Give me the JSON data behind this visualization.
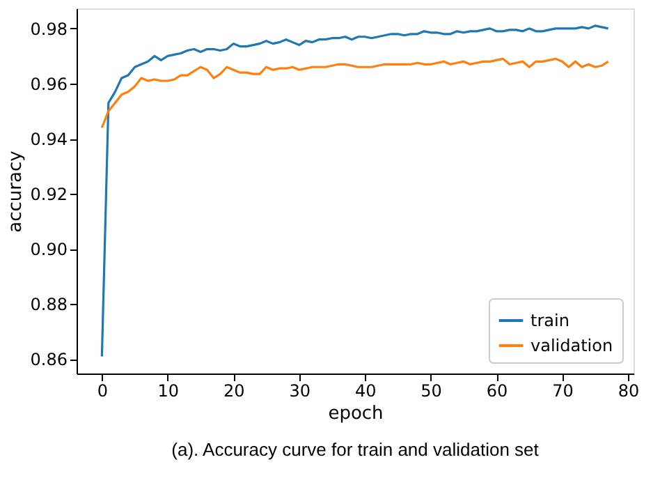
{
  "chart_data": {
    "type": "line",
    "xlabel": "epoch",
    "ylabel": "accuracy",
    "annotations": [
      "(a). Accuracy curve for train and validation set"
    ],
    "x": [
      0,
      1,
      2,
      3,
      4,
      5,
      6,
      7,
      8,
      9,
      10,
      11,
      12,
      13,
      14,
      15,
      16,
      17,
      18,
      19,
      20,
      21,
      22,
      23,
      24,
      25,
      26,
      27,
      28,
      29,
      30,
      31,
      32,
      33,
      34,
      35,
      36,
      37,
      38,
      39,
      40,
      41,
      42,
      43,
      44,
      45,
      46,
      47,
      48,
      49,
      50,
      51,
      52,
      53,
      54,
      55,
      56,
      57,
      58,
      59,
      60,
      61,
      62,
      63,
      64,
      65,
      66,
      67,
      68,
      69,
      70,
      71,
      72,
      73,
      74,
      75,
      76,
      77
    ],
    "series": [
      {
        "name": "train",
        "color": "#1f77b4",
        "values": [
          0.861,
          0.953,
          0.957,
          0.962,
          0.963,
          0.966,
          0.967,
          0.968,
          0.97,
          0.9685,
          0.97,
          0.9705,
          0.971,
          0.972,
          0.9725,
          0.9715,
          0.9725,
          0.9725,
          0.972,
          0.9725,
          0.9745,
          0.9735,
          0.9735,
          0.974,
          0.9745,
          0.9755,
          0.9745,
          0.975,
          0.976,
          0.975,
          0.974,
          0.9755,
          0.975,
          0.976,
          0.976,
          0.9765,
          0.9765,
          0.977,
          0.976,
          0.977,
          0.977,
          0.9765,
          0.977,
          0.9775,
          0.978,
          0.978,
          0.9775,
          0.978,
          0.978,
          0.979,
          0.9785,
          0.9785,
          0.978,
          0.978,
          0.979,
          0.9785,
          0.979,
          0.979,
          0.9795,
          0.98,
          0.979,
          0.979,
          0.9795,
          0.9795,
          0.979,
          0.98,
          0.979,
          0.979,
          0.9795,
          0.98,
          0.98,
          0.98,
          0.98,
          0.9805,
          0.98,
          0.981,
          0.9805,
          0.98
        ]
      },
      {
        "name": "validation",
        "color": "#ff7f0e",
        "values": [
          0.944,
          0.95,
          0.953,
          0.956,
          0.957,
          0.959,
          0.962,
          0.961,
          0.9615,
          0.961,
          0.961,
          0.9615,
          0.963,
          0.963,
          0.9645,
          0.966,
          0.965,
          0.962,
          0.9635,
          0.966,
          0.965,
          0.964,
          0.964,
          0.9635,
          0.9635,
          0.966,
          0.965,
          0.9655,
          0.9655,
          0.966,
          0.965,
          0.9655,
          0.966,
          0.966,
          0.966,
          0.9665,
          0.967,
          0.967,
          0.9665,
          0.966,
          0.966,
          0.966,
          0.9665,
          0.967,
          0.967,
          0.967,
          0.967,
          0.967,
          0.9675,
          0.967,
          0.967,
          0.9675,
          0.968,
          0.967,
          0.9675,
          0.968,
          0.967,
          0.9675,
          0.968,
          0.968,
          0.9685,
          0.969,
          0.967,
          0.9675,
          0.968,
          0.966,
          0.968,
          0.968,
          0.9685,
          0.969,
          0.968,
          0.966,
          0.968,
          0.966,
          0.967,
          0.966,
          0.9665,
          0.968
        ]
      }
    ],
    "xlim": [
      -3.85,
      80.85
    ],
    "xticks": [
      0,
      10,
      20,
      30,
      40,
      50,
      60,
      70,
      80
    ],
    "ylim": [
      0.8548,
      0.9873
    ],
    "yticks": [
      0.86,
      0.88,
      {
        "value": 0.9,
        "label": "0.90"
      },
      0.92,
      0.94,
      0.96,
      0.98
    ],
    "grid": false,
    "legend": "bottom right",
    "line_style": "solid",
    "marker": "none"
  }
}
